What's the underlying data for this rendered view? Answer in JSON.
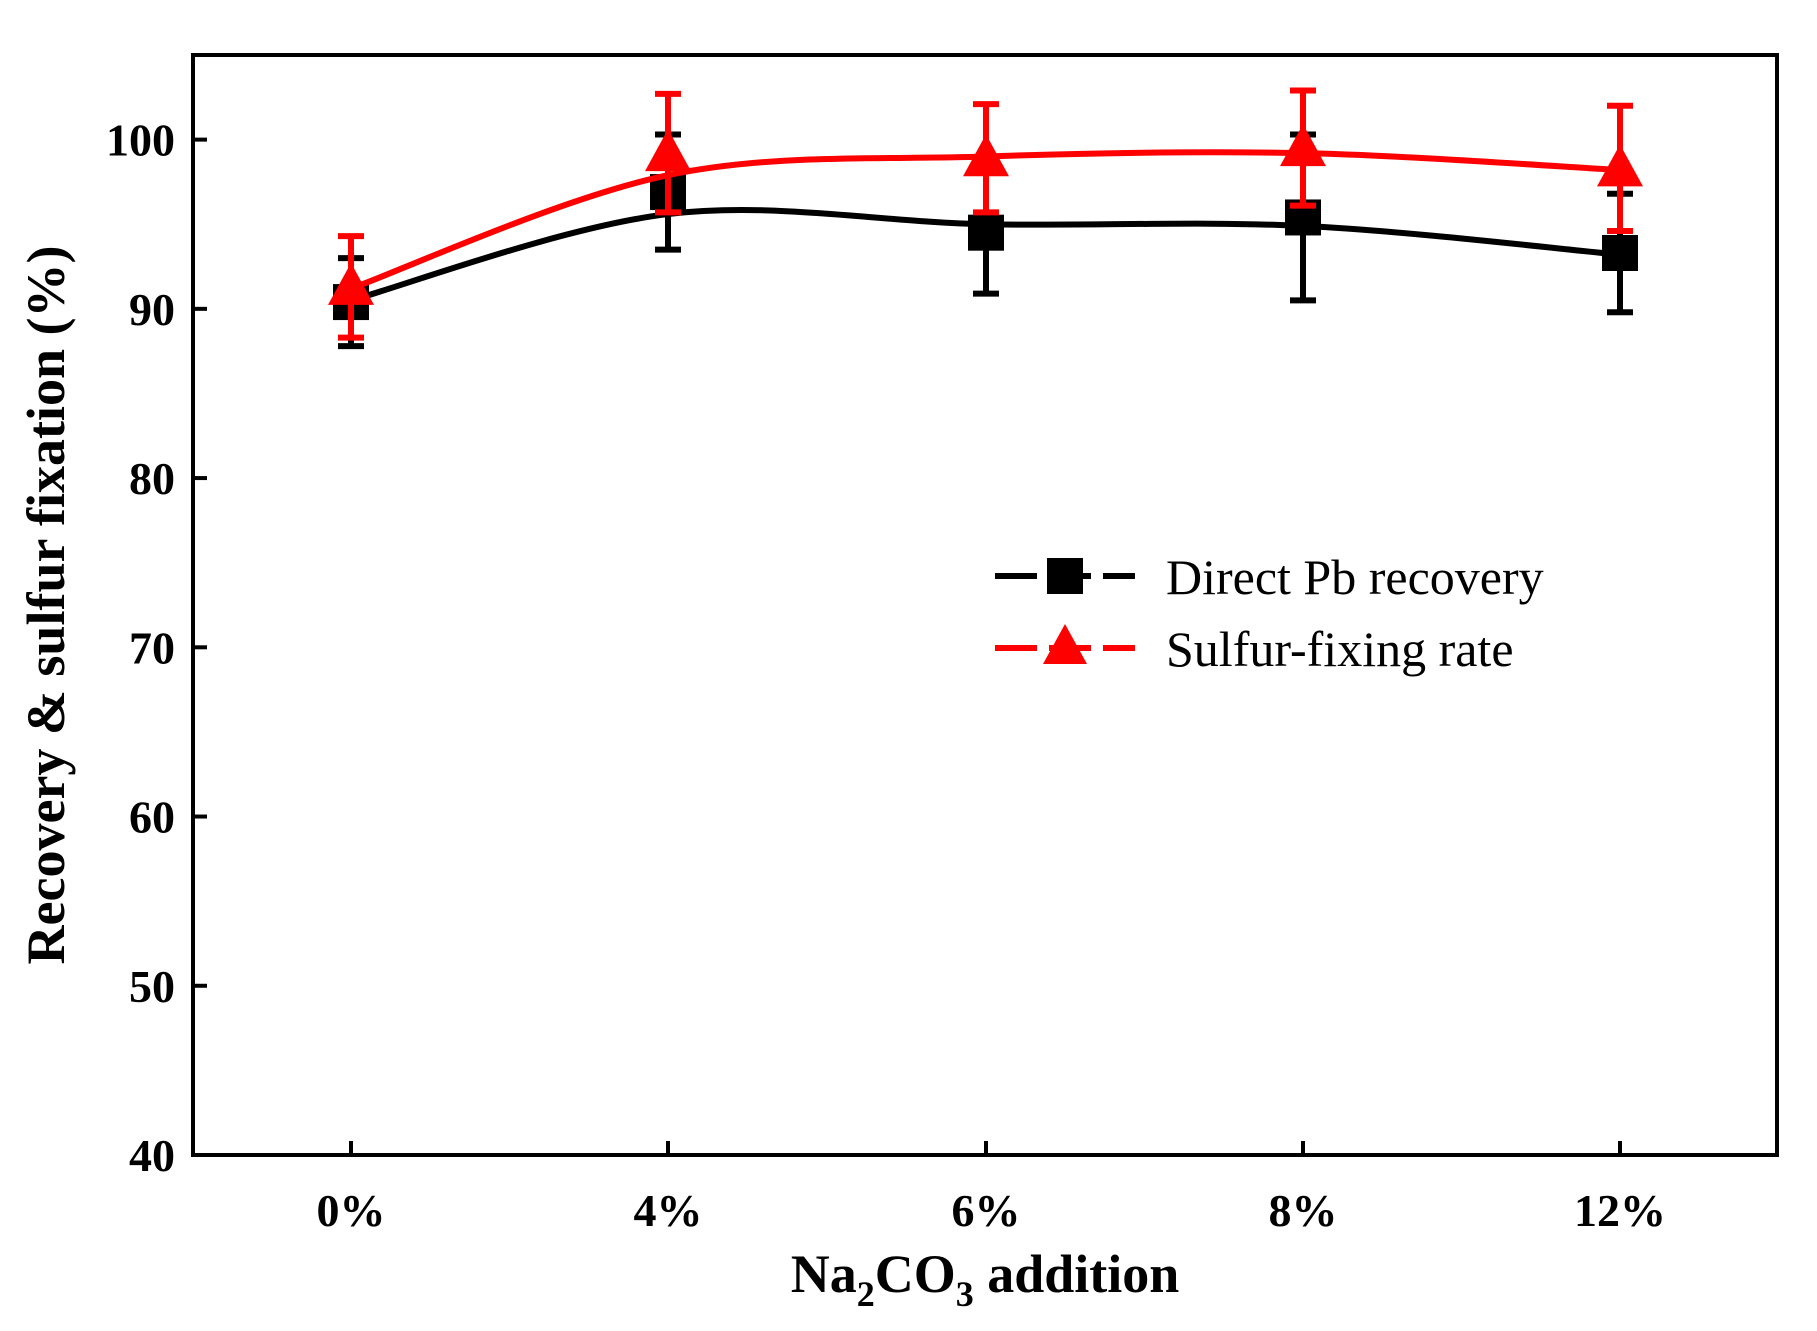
{
  "chart_data": {
    "type": "line",
    "categories": [
      "0%",
      "4%",
      "6%",
      "8%",
      "12%"
    ],
    "series": [
      {
        "name": "Direct Pb recovery",
        "color": "#000000",
        "marker": "square",
        "values": [
          90.4,
          96.9,
          94.5,
          95.4,
          93.3
        ],
        "error": [
          2.6,
          3.4,
          3.6,
          4.9,
          3.5
        ],
        "fit": [
          90.5,
          95.6,
          95.0,
          94.9,
          93.2
        ]
      },
      {
        "name": "Sulfur-fixing rate",
        "color": "#ff0000",
        "marker": "triangle",
        "values": [
          91.3,
          99.2,
          98.9,
          99.5,
          98.3
        ],
        "error": [
          3.0,
          3.5,
          3.2,
          3.4,
          3.7
        ],
        "fit": [
          91.2,
          97.9,
          99.0,
          99.2,
          98.2
        ]
      }
    ],
    "xlabel_parts": [
      "Na",
      "2",
      "CO",
      "3",
      " addition"
    ],
    "ylabel": "Recovery & sulfur fixation (%)",
    "ylim": [
      40,
      105
    ],
    "yticks": [
      "40",
      "50",
      "60",
      "70",
      "80",
      "90",
      "100"
    ],
    "grid": false,
    "legend_position": "right-middle"
  }
}
